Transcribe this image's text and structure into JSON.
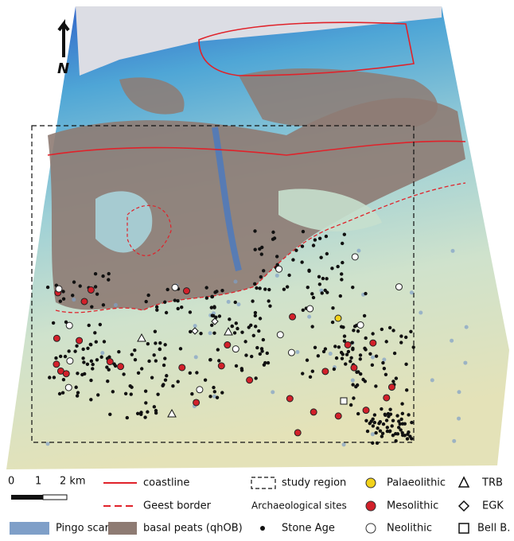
{
  "north_arrow": "N",
  "scale_bar": {
    "labels": [
      "0",
      "1",
      "2 km"
    ]
  },
  "legend": {
    "coastline": "coastline",
    "geest_border": "Geest border",
    "pingo_scars": "Pingo scars",
    "basal_peats": "basal peats (qhOB)",
    "study_region": "study region",
    "sites_heading": "Archaeological sites",
    "stone_age": "Stone Age",
    "palaeolithic": "Palaeolithic",
    "mesolithic": "Mesolithic",
    "neolithic": "Neolithic",
    "trb": "TRB",
    "egk": "EGK",
    "bell_beaker": "Bell B."
  }
}
